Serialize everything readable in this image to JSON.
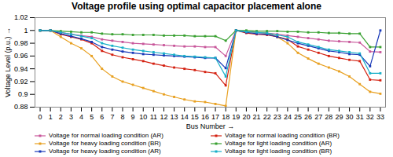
{
  "chart_data": {
    "type": "line",
    "title": "Voltage profile using optimal capacitor placement alone",
    "xlabel": "Bus Number",
    "ylabel": "Voltage Level (p.u.)",
    "x": [
      0,
      1,
      2,
      3,
      4,
      5,
      6,
      7,
      8,
      9,
      10,
      11,
      12,
      13,
      14,
      15,
      16,
      17,
      18,
      19,
      20,
      21,
      22,
      23,
      24,
      25,
      26,
      27,
      28,
      29,
      30,
      31,
      32,
      33
    ],
    "xlim": [
      -0.5,
      33.5
    ],
    "xticks": [
      0,
      1,
      2,
      3,
      4,
      5,
      6,
      7,
      8,
      9,
      10,
      11,
      12,
      13,
      14,
      15,
      16,
      17,
      18,
      19,
      20,
      21,
      22,
      23,
      24,
      25,
      26,
      27,
      28,
      29,
      30,
      31,
      32,
      33
    ],
    "ylim": [
      0.88,
      1.02
    ],
    "yticks": [
      0.88,
      0.9,
      0.92,
      0.94,
      0.96,
      0.98,
      1.0,
      1.02
    ],
    "grid": false,
    "legend": "bottom",
    "marker": "square",
    "line_style": "solid",
    "series": [
      {
        "name": "Voltage for normal loading condition (AR)",
        "color": "#c8569a",
        "values": [
          1.0,
          1.0,
          0.997,
          0.994,
          0.992,
          0.99,
          0.986,
          0.984,
          0.982,
          0.98,
          0.979,
          0.978,
          0.977,
          0.976,
          0.975,
          0.975,
          0.974,
          0.974,
          0.96,
          1.0,
          0.998,
          0.997,
          0.996,
          0.994,
          0.992,
          0.99,
          0.988,
          0.986,
          0.984,
          0.983,
          0.982,
          0.981,
          0.967,
          0.966
        ]
      },
      {
        "name": "Voltage for normal loading condition (BR)",
        "color": "#d42010",
        "values": [
          1.0,
          1.0,
          0.994,
          0.99,
          0.986,
          0.98,
          0.968,
          0.962,
          0.958,
          0.955,
          0.952,
          0.948,
          0.945,
          0.942,
          0.94,
          0.938,
          0.935,
          0.933,
          0.914,
          1.0,
          0.996,
          0.994,
          0.993,
          0.99,
          0.986,
          0.975,
          0.97,
          0.965,
          0.96,
          0.957,
          0.954,
          0.952,
          0.923,
          0.922
        ]
      },
      {
        "name": "Voltage for heavy loading condition (BR)",
        "color": "#e8a020",
        "values": [
          1.0,
          1.0,
          0.99,
          0.98,
          0.972,
          0.96,
          0.94,
          0.928,
          0.92,
          0.915,
          0.91,
          0.905,
          0.9,
          0.896,
          0.892,
          0.889,
          0.888,
          0.885,
          0.882,
          1.0,
          0.998,
          0.997,
          0.996,
          0.99,
          0.98,
          0.965,
          0.956,
          0.948,
          0.942,
          0.936,
          0.928,
          0.916,
          0.904,
          0.901
        ]
      },
      {
        "name": "Voltage for light loading condition (AR)",
        "color": "#38a030",
        "values": [
          1.0,
          1.0,
          0.999,
          0.998,
          0.997,
          0.997,
          0.995,
          0.994,
          0.994,
          0.993,
          0.993,
          0.993,
          0.992,
          0.992,
          0.992,
          0.991,
          0.991,
          0.991,
          0.984,
          1.0,
          1.0,
          0.999,
          0.999,
          0.999,
          0.998,
          0.998,
          0.997,
          0.997,
          0.996,
          0.996,
          0.995,
          0.995,
          0.974,
          0.974
        ]
      },
      {
        "name": "Voltage for heavy loading condition (AR)",
        "color": "#1838b8",
        "values": [
          1.0,
          1.0,
          0.995,
          0.991,
          0.987,
          0.982,
          0.974,
          0.97,
          0.967,
          0.965,
          0.963,
          0.962,
          0.961,
          0.96,
          0.959,
          0.958,
          0.957,
          0.957,
          0.941,
          1.0,
          0.997,
          0.995,
          0.994,
          0.99,
          0.985,
          0.98,
          0.976,
          0.972,
          0.968,
          0.966,
          0.963,
          0.962,
          0.944,
          1.0
        ]
      },
      {
        "name": "Voltage for light loading condition (BR)",
        "color": "#18b0c8",
        "values": [
          1.0,
          1.0,
          0.997,
          0.994,
          0.991,
          0.988,
          0.98,
          0.976,
          0.973,
          0.97,
          0.968,
          0.966,
          0.964,
          0.962,
          0.96,
          0.959,
          0.958,
          0.957,
          0.928,
          1.0,
          0.998,
          0.997,
          0.996,
          0.993,
          0.99,
          0.982,
          0.978,
          0.974,
          0.97,
          0.968,
          0.966,
          0.964,
          0.933,
          0.933
        ]
      }
    ]
  }
}
